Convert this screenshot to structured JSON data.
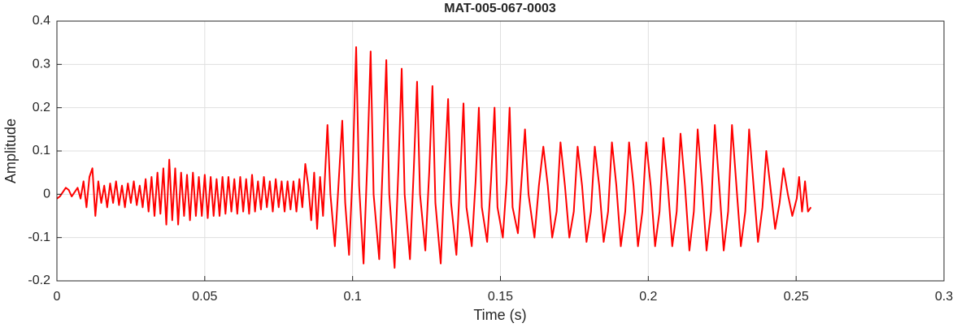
{
  "chart_data": {
    "type": "line",
    "title": "MAT-005-067-0003",
    "x_label": "Time (s)",
    "y_label": "Amplitude",
    "xlim": [
      0,
      0.3
    ],
    "ylim": [
      -0.2,
      0.4
    ],
    "xticks": [
      0,
      0.05,
      0.1,
      0.15,
      0.2,
      0.25,
      0.3
    ],
    "yticks": [
      -0.2,
      -0.1,
      0,
      0.1,
      0.2,
      0.3,
      0.4
    ],
    "grid": true,
    "series": [
      {
        "color": "#ff0000",
        "x": [
          0,
          0.001,
          0.002,
          0.003,
          0.004,
          0.005,
          0.006,
          0.007,
          0.008,
          0.009,
          0.01,
          0.011,
          0.012,
          0.013,
          0.014,
          0.015,
          0.016,
          0.017,
          0.018,
          0.019,
          0.02,
          0.021,
          0.022,
          0.023,
          0.024,
          0.025,
          0.026,
          0.027,
          0.028,
          0.029,
          0.03,
          0.031,
          0.032,
          0.033,
          0.034,
          0.035,
          0.036,
          0.037,
          0.038,
          0.039,
          0.04,
          0.041,
          0.042,
          0.043,
          0.044,
          0.045,
          0.046,
          0.047,
          0.048,
          0.049,
          0.05,
          0.051,
          0.052,
          0.053,
          0.054,
          0.055,
          0.056,
          0.057,
          0.058,
          0.059,
          0.06,
          0.061,
          0.062,
          0.063,
          0.064,
          0.065,
          0.066,
          0.067,
          0.068,
          0.069,
          0.07,
          0.071,
          0.072,
          0.073,
          0.074,
          0.075,
          0.076,
          0.077,
          0.078,
          0.079,
          0.08,
          0.081,
          0.082,
          0.083,
          0.084,
          0.085,
          0.086,
          0.087,
          0.088,
          0.089,
          0.09,
          0.0915,
          0.0925,
          0.094,
          0.0953,
          0.0965,
          0.0975,
          0.0988,
          0.1,
          0.1012,
          0.1022,
          0.1037,
          0.105,
          0.1061,
          0.1071,
          0.109,
          0.1102,
          0.1114,
          0.1124,
          0.1142,
          0.1155,
          0.1166,
          0.1176,
          0.1194,
          0.1207,
          0.1218,
          0.1228,
          0.1246,
          0.1259,
          0.127,
          0.128,
          0.1298,
          0.1311,
          0.1323,
          0.1333,
          0.1351,
          0.1364,
          0.1375,
          0.1385,
          0.1403,
          0.1416,
          0.1427,
          0.1437,
          0.1455,
          0.1468,
          0.148,
          0.149,
          0.1508,
          0.1521,
          0.1531,
          0.1541,
          0.1559,
          0.1572,
          0.1583,
          0.1595,
          0.1615,
          0.163,
          0.1645,
          0.166,
          0.1675,
          0.169,
          0.1703,
          0.1718,
          0.1733,
          0.1748,
          0.1761,
          0.1776,
          0.1791,
          0.1806,
          0.1819,
          0.1834,
          0.1849,
          0.1864,
          0.1877,
          0.1892,
          0.1907,
          0.1922,
          0.1935,
          0.195,
          0.1965,
          0.198,
          0.1993,
          0.2008,
          0.2023,
          0.2038,
          0.2051,
          0.2066,
          0.2081,
          0.2096,
          0.2109,
          0.2124,
          0.2139,
          0.2154,
          0.2167,
          0.2182,
          0.2197,
          0.2212,
          0.2225,
          0.224,
          0.2255,
          0.227,
          0.2283,
          0.2298,
          0.2313,
          0.2328,
          0.2341,
          0.2356,
          0.2371,
          0.2386,
          0.2399,
          0.2414,
          0.2429,
          0.2444,
          0.2457,
          0.2472,
          0.2487,
          0.2502,
          0.251,
          0.252,
          0.253,
          0.254,
          0.255
        ],
        "values": [
          -0.01,
          -0.005,
          0.005,
          0.015,
          0.01,
          -0.005,
          0.005,
          0.015,
          -0.01,
          0.03,
          -0.03,
          0.04,
          0.06,
          -0.05,
          0.03,
          -0.02,
          0.02,
          -0.03,
          0.025,
          -0.02,
          0.03,
          -0.025,
          0.02,
          -0.03,
          0.025,
          -0.02,
          0.03,
          -0.025,
          0.02,
          -0.03,
          0.035,
          -0.04,
          0.04,
          -0.05,
          0.05,
          -0.045,
          0.06,
          -0.07,
          0.08,
          -0.06,
          0.06,
          -0.07,
          0.05,
          -0.05,
          0.045,
          -0.06,
          0.05,
          -0.05,
          0.04,
          -0.05,
          0.045,
          -0.055,
          0.04,
          -0.05,
          0.035,
          -0.05,
          0.04,
          -0.045,
          0.04,
          -0.04,
          0.035,
          -0.045,
          0.04,
          -0.04,
          0.035,
          -0.045,
          0.045,
          -0.04,
          0.03,
          -0.035,
          0.04,
          -0.03,
          0.03,
          -0.04,
          0.035,
          -0.03,
          0.03,
          -0.04,
          0.03,
          -0.035,
          0.03,
          -0.04,
          0.035,
          -0.03,
          0.07,
          0.02,
          -0.06,
          0.05,
          -0.08,
          0.04,
          -0.05,
          0.16,
          0.0,
          -0.12,
          0.03,
          0.17,
          -0.02,
          -0.14,
          0.05,
          0.34,
          0.02,
          -0.16,
          0.08,
          0.33,
          0.0,
          -0.15,
          0.07,
          0.31,
          0.0,
          -0.17,
          0.06,
          0.29,
          0.0,
          -0.15,
          0.06,
          0.26,
          0.0,
          -0.13,
          0.05,
          0.25,
          -0.02,
          -0.16,
          0.05,
          0.22,
          -0.02,
          -0.14,
          0.04,
          0.21,
          -0.03,
          -0.12,
          0.03,
          0.2,
          -0.03,
          -0.11,
          0.03,
          0.2,
          -0.03,
          -0.1,
          0.03,
          0.2,
          -0.03,
          -0.09,
          0.04,
          0.15,
          0.0,
          -0.1,
          0.02,
          0.11,
          0.02,
          -0.1,
          -0.04,
          0.12,
          0.02,
          -0.1,
          -0.04,
          0.11,
          0.02,
          -0.11,
          -0.04,
          0.11,
          0.02,
          -0.11,
          -0.04,
          0.12,
          0.02,
          -0.12,
          -0.04,
          0.12,
          0.02,
          -0.12,
          -0.04,
          0.12,
          0.02,
          -0.12,
          -0.04,
          0.13,
          0.02,
          -0.12,
          -0.04,
          0.14,
          0.02,
          -0.13,
          -0.04,
          0.15,
          0.02,
          -0.13,
          -0.04,
          0.16,
          0.02,
          -0.13,
          -0.04,
          0.16,
          0.02,
          -0.12,
          -0.04,
          0.15,
          0.02,
          -0.11,
          -0.03,
          0.1,
          0.01,
          -0.08,
          -0.02,
          0.06,
          0.0,
          -0.05,
          -0.01,
          0.04,
          -0.04,
          0.03,
          -0.04,
          -0.03
        ]
      }
    ]
  }
}
